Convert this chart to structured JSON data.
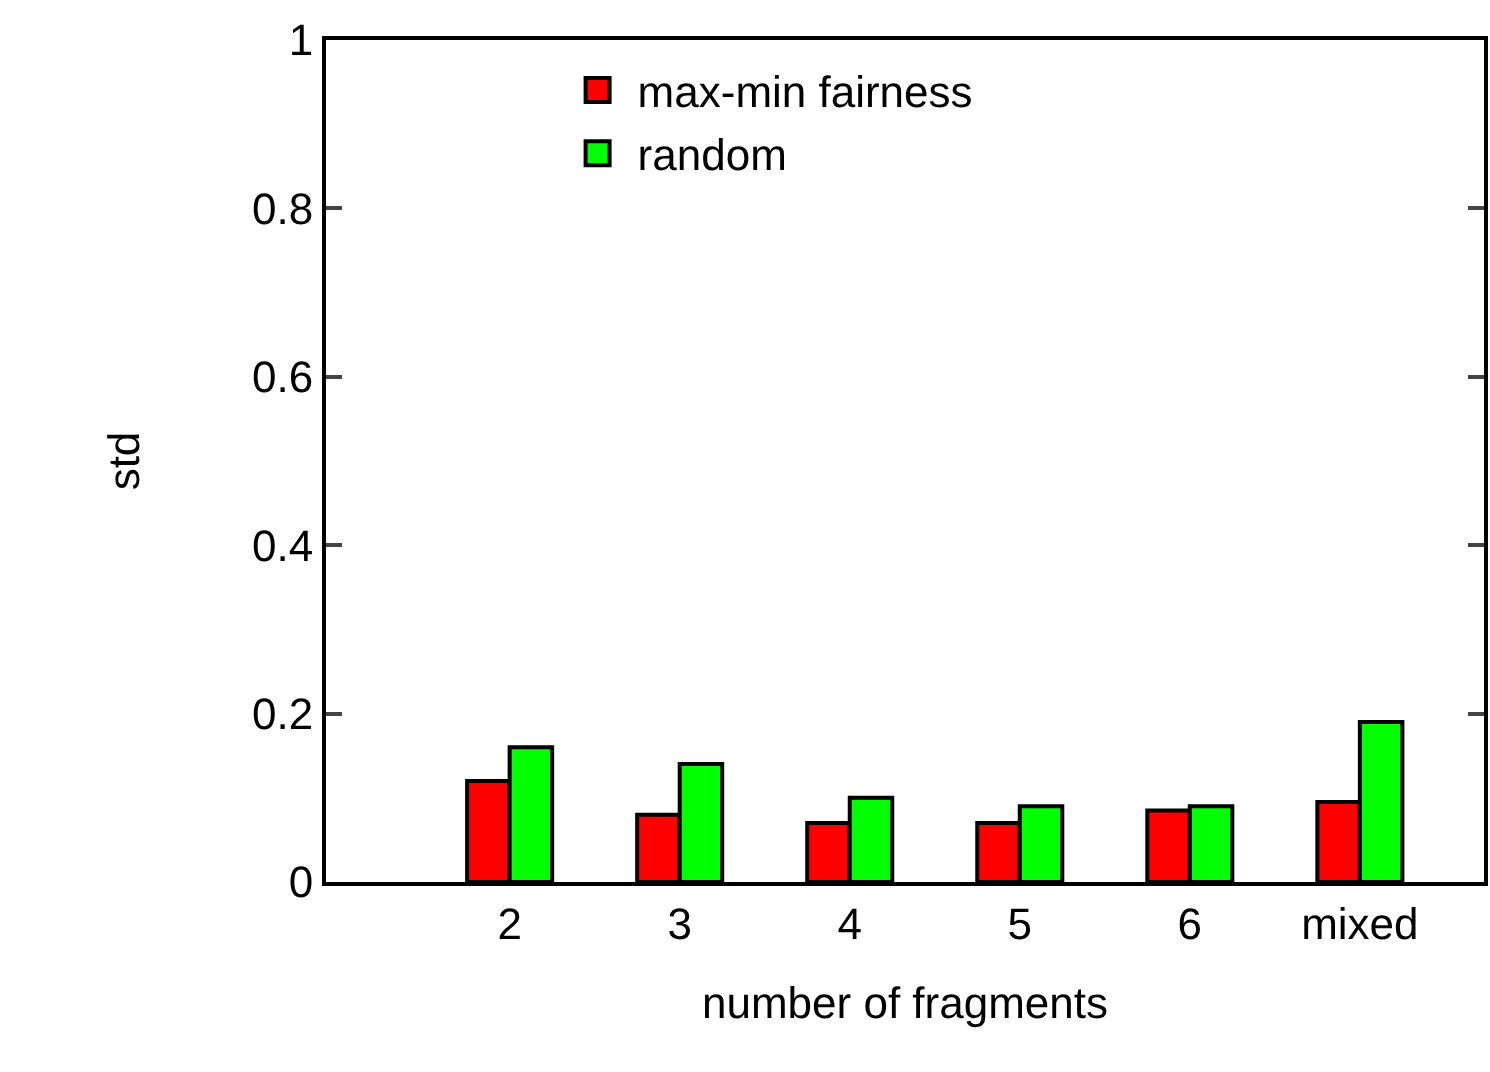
{
  "chart_data": {
    "type": "bar",
    "xlabel": "number of fragments",
    "ylabel": "std",
    "categories": [
      "2",
      "3",
      "4",
      "5",
      "6",
      "mixed"
    ],
    "series": [
      {
        "name": "max-min fairness",
        "color": "#ff0000",
        "values": [
          0.12,
          0.08,
          0.07,
          0.07,
          0.085,
          0.095
        ]
      },
      {
        "name": "random",
        "color": "#00ff00",
        "values": [
          0.16,
          0.14,
          0.1,
          0.09,
          0.09,
          0.19
        ]
      }
    ],
    "ylim": [
      0,
      1
    ],
    "yticks": [
      0,
      0.2,
      0.4,
      0.6,
      0.8,
      1
    ],
    "grid": false,
    "legend": "top left"
  }
}
